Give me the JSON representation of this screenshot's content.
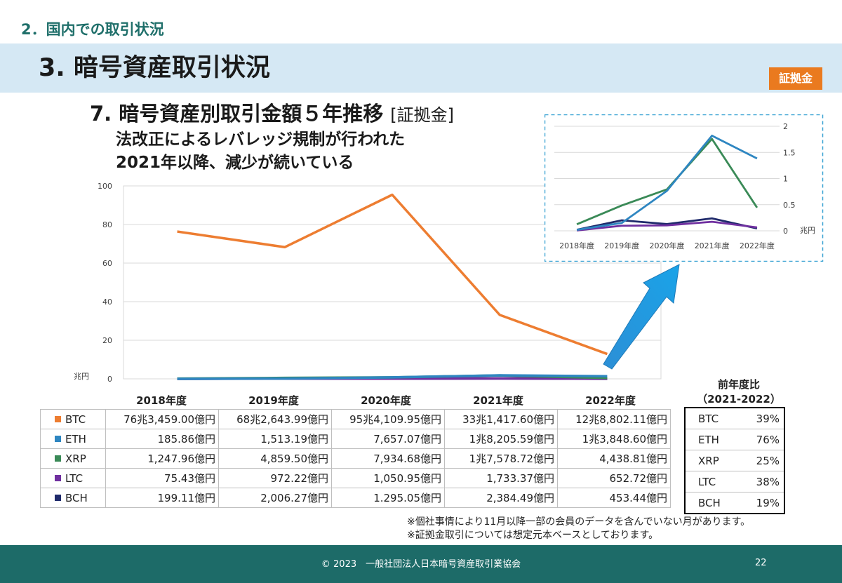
{
  "header": {
    "section": "2．国内での取引状況",
    "title": "3. 暗号資産取引状況",
    "badge": "証拠金",
    "subtitle": "7. 暗号資産別取引金額５年推移",
    "subtitle_tag": "[証拠金]",
    "lead_line1": "法改正によるレバレッジ規制が行われた",
    "lead_line2": "2021年以降、減少が続いている"
  },
  "chart_data": [
    {
      "type": "line",
      "categories": [
        "2018年度",
        "2019年度",
        "2020年度",
        "2021年度",
        "2022年度"
      ],
      "ylabel": "兆円",
      "ylim": [
        0,
        100
      ],
      "yticks": [
        0,
        20,
        40,
        60,
        80,
        100
      ],
      "grid": true,
      "series": [
        {
          "name": "BTC",
          "color": "#ed7d31",
          "values": [
            76.35,
            68.26,
            95.41,
            33.14,
            12.88
          ]
        },
        {
          "name": "ETH",
          "color": "#2e86c1",
          "values": [
            0.0186,
            0.1513,
            0.7657,
            1.8206,
            1.3849
          ]
        },
        {
          "name": "XRP",
          "color": "#3a8a57",
          "values": [
            0.1248,
            0.486,
            0.7935,
            1.7579,
            0.4439
          ]
        },
        {
          "name": "LTC",
          "color": "#7030a0",
          "values": [
            0.0075,
            0.0972,
            0.1051,
            0.1733,
            0.0653
          ]
        },
        {
          "name": "BCH",
          "color": "#1f2a6b",
          "values": [
            0.0199,
            0.2006,
            0.1295,
            0.2384,
            0.0453
          ]
        }
      ]
    },
    {
      "type": "line",
      "categories": [
        "2018年度",
        "2019年度",
        "2020年度",
        "2021年度",
        "2022年度"
      ],
      "ylabel": "兆円",
      "ylim": [
        0,
        2
      ],
      "yticks": [
        0,
        0.5,
        1,
        1.5,
        2
      ],
      "axis_side": "right",
      "grid": true,
      "series": [
        {
          "name": "ETH",
          "color": "#2e86c1",
          "values": [
            0.0186,
            0.1513,
            0.7657,
            1.8206,
            1.3849
          ]
        },
        {
          "name": "XRP",
          "color": "#3a8a57",
          "values": [
            0.1248,
            0.486,
            0.7935,
            1.7579,
            0.4439
          ]
        },
        {
          "name": "LTC",
          "color": "#7030a0",
          "values": [
            0.0075,
            0.0972,
            0.1051,
            0.1733,
            0.0653
          ]
        },
        {
          "name": "BCH",
          "color": "#1f2a6b",
          "values": [
            0.0199,
            0.2006,
            0.1295,
            0.2384,
            0.0453
          ]
        }
      ]
    }
  ],
  "table": {
    "years": [
      "2018年度",
      "2019年度",
      "2020年度",
      "2021年度",
      "2022年度"
    ],
    "rows": [
      {
        "label": "BTC",
        "color": "#ed7d31",
        "cells": [
          "76兆3,459.00億円",
          "68兆2,643.99億円",
          "95兆4,109.95億円",
          "33兆1,417.60億円",
          "12兆8,802.11億円"
        ]
      },
      {
        "label": "ETH",
        "color": "#2e86c1",
        "cells": [
          "185.86億円",
          "1,513.19億円",
          "7,657.07億円",
          "1兆8,205.59億円",
          "1兆3,848.60億円"
        ]
      },
      {
        "label": "XRP",
        "color": "#3a8a57",
        "cells": [
          "1,247.96億円",
          "4,859.50億円",
          "7,934.68億円",
          "1兆7,578.72億円",
          "4,438.81億円"
        ]
      },
      {
        "label": "LTC",
        "color": "#7030a0",
        "cells": [
          "75.43億円",
          "972.22億円",
          "1,050.95億円",
          "1,733.37億円",
          "652.72億円"
        ]
      },
      {
        "label": "BCH",
        "color": "#1f2a6b",
        "cells": [
          "199.11億円",
          "2,006.27億円",
          "1.295.05億円",
          "2,384.49億円",
          "453.44億円"
        ]
      }
    ]
  },
  "ratio": {
    "title_line1": "前年度比",
    "title_line2": "（2021-2022）",
    "rows": [
      {
        "label": "BTC",
        "value": "39%"
      },
      {
        "label": "ETH",
        "value": "76%"
      },
      {
        "label": "XRP",
        "value": "25%"
      },
      {
        "label": "LTC",
        "value": "38%"
      },
      {
        "label": "BCH",
        "value": "19%"
      }
    ]
  },
  "notes": [
    "※個社事情により11月以降一部の会員のデータを含んでいない月があります。",
    "※証拠金取引については想定元本ベースとしております。"
  ],
  "footer": {
    "copyright": "© 2023　一般社団法人日本暗号資産取引業協会",
    "page": "22"
  }
}
